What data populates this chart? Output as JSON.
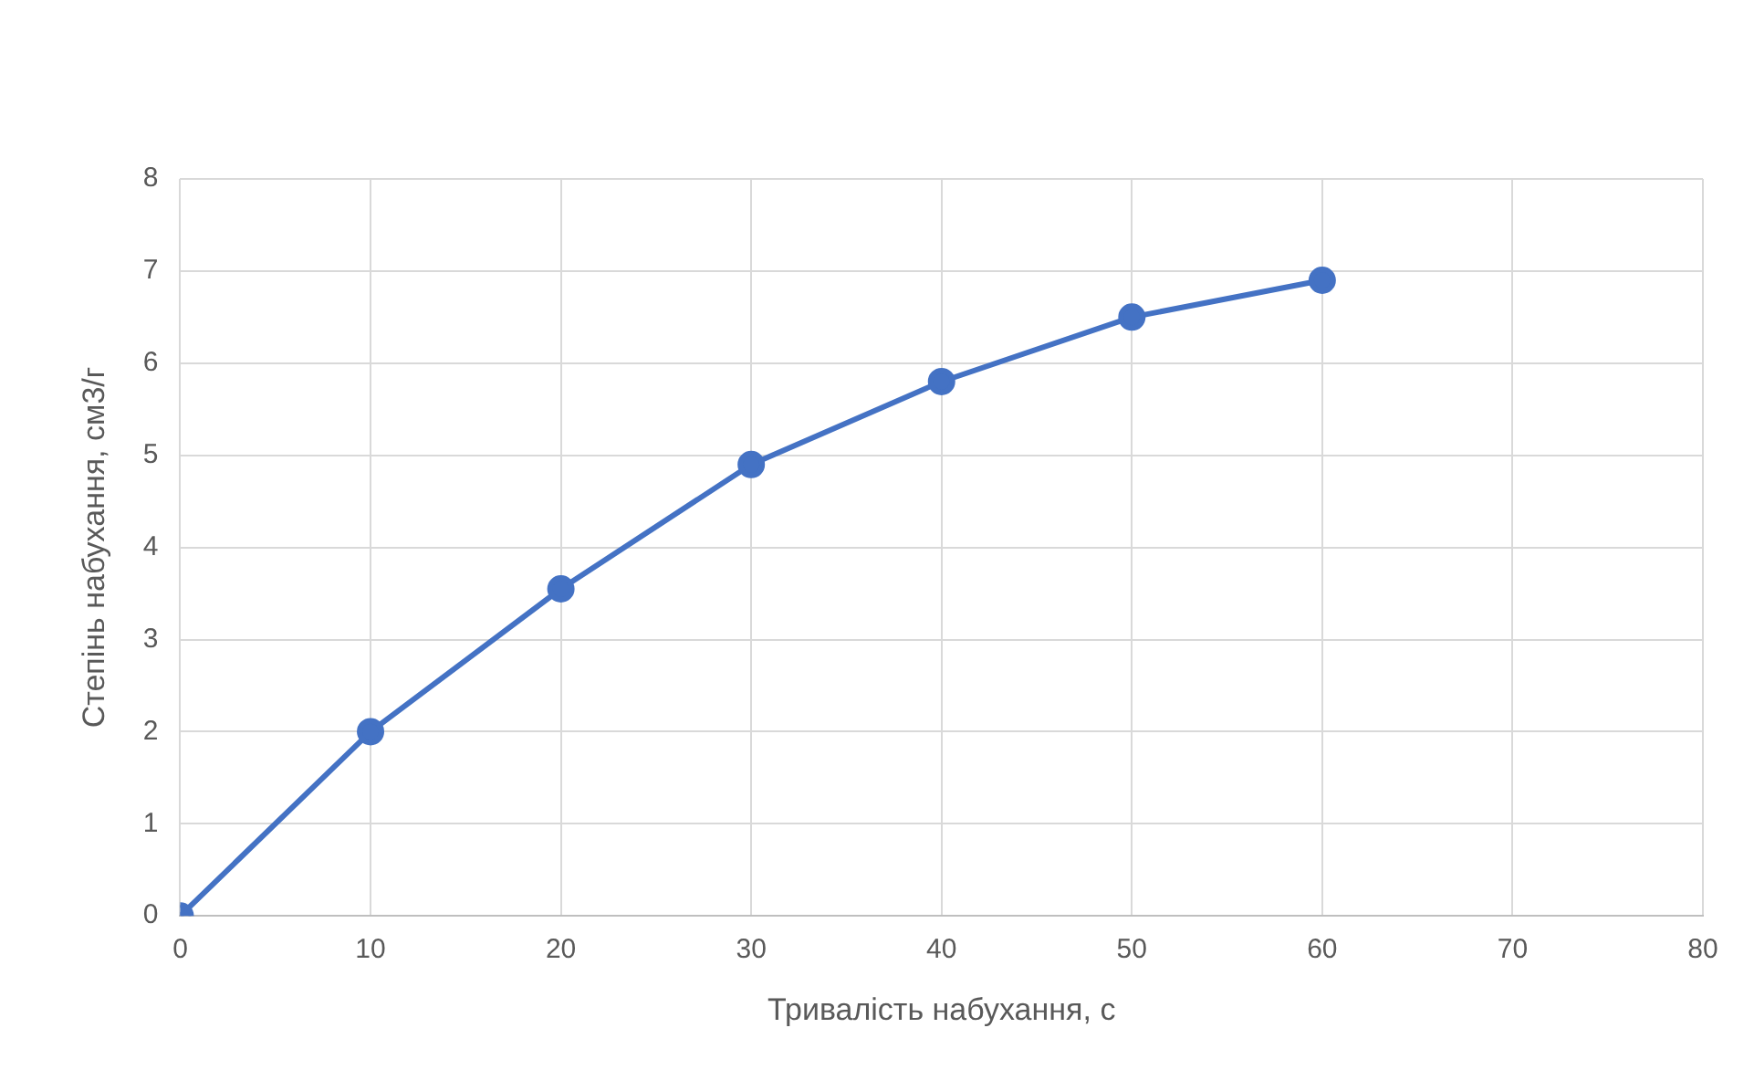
{
  "chart_data": {
    "type": "line",
    "xlabel": "Тривалість набухання, с",
    "ylabel": "Степінь набухання, см3/г",
    "x": [
      0,
      10,
      20,
      30,
      40,
      50,
      60
    ],
    "series": [
      {
        "color": "#4472c4",
        "values": [
          0,
          2.0,
          3.55,
          4.9,
          5.8,
          6.5,
          6.9
        ]
      }
    ],
    "xlim": [
      0,
      80
    ],
    "xticks": [
      0,
      10,
      20,
      30,
      40,
      50,
      60,
      70,
      80
    ],
    "ylim": [
      0,
      8
    ],
    "yticks": [
      0,
      1,
      2,
      3,
      4,
      5,
      6,
      7,
      8
    ],
    "grid": true,
    "marker": "circle",
    "line_style": "solid"
  }
}
